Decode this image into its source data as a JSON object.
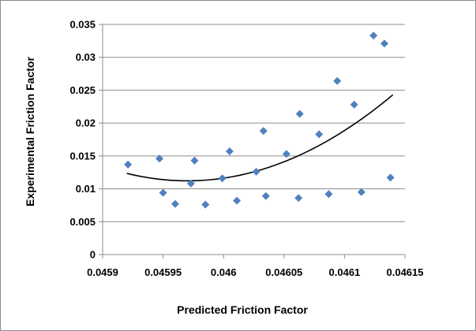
{
  "chart_data": {
    "type": "scatter",
    "title": "",
    "xlabel": "Predicted Friction Factor",
    "ylabel": "Experimental Friction Factor",
    "xlim": [
      0.0459,
      0.04615
    ],
    "ylim": [
      0,
      0.035
    ],
    "x_ticks": [
      "0.0459",
      "0.04595",
      "0.046",
      "0.04605",
      "0.0461",
      "0.04615"
    ],
    "y_ticks": [
      "0",
      "0.005",
      "0.01",
      "0.015",
      "0.02",
      "0.025",
      "0.03",
      "0.035"
    ],
    "grid": "horizontal",
    "legend": "none",
    "marker": "diamond",
    "marker_color": "#4F81BD",
    "trendline": {
      "type": "polynomial",
      "order": 2,
      "color": "#000000"
    },
    "points": [
      {
        "x": 0.045921,
        "y": 0.0137
      },
      {
        "x": 0.045947,
        "y": 0.0146
      },
      {
        "x": 0.04595,
        "y": 0.0094
      },
      {
        "x": 0.04596,
        "y": 0.0077
      },
      {
        "x": 0.045973,
        "y": 0.0108
      },
      {
        "x": 0.045976,
        "y": 0.0143
      },
      {
        "x": 0.045985,
        "y": 0.0076
      },
      {
        "x": 0.045999,
        "y": 0.0116
      },
      {
        "x": 0.046005,
        "y": 0.0157
      },
      {
        "x": 0.046011,
        "y": 0.0082
      },
      {
        "x": 0.046027,
        "y": 0.0126
      },
      {
        "x": 0.046033,
        "y": 0.0188
      },
      {
        "x": 0.046035,
        "y": 0.0089
      },
      {
        "x": 0.046052,
        "y": 0.0153
      },
      {
        "x": 0.046062,
        "y": 0.0086
      },
      {
        "x": 0.046063,
        "y": 0.0214
      },
      {
        "x": 0.046079,
        "y": 0.0183
      },
      {
        "x": 0.046087,
        "y": 0.0092
      },
      {
        "x": 0.046094,
        "y": 0.0264
      },
      {
        "x": 0.046108,
        "y": 0.0228
      },
      {
        "x": 0.046114,
        "y": 0.0095
      },
      {
        "x": 0.046124,
        "y": 0.0333
      },
      {
        "x": 0.046133,
        "y": 0.0321
      },
      {
        "x": 0.046138,
        "y": 0.0117
      }
    ],
    "trendline_points": [
      {
        "x": 0.04592,
        "y": 0.0123
      },
      {
        "x": 0.04596,
        "y": 0.0114
      },
      {
        "x": 0.04598,
        "y": 0.0112
      },
      {
        "x": 0.046,
        "y": 0.0116
      },
      {
        "x": 0.04604,
        "y": 0.0134
      },
      {
        "x": 0.04608,
        "y": 0.0167
      },
      {
        "x": 0.04614,
        "y": 0.0243
      }
    ]
  }
}
